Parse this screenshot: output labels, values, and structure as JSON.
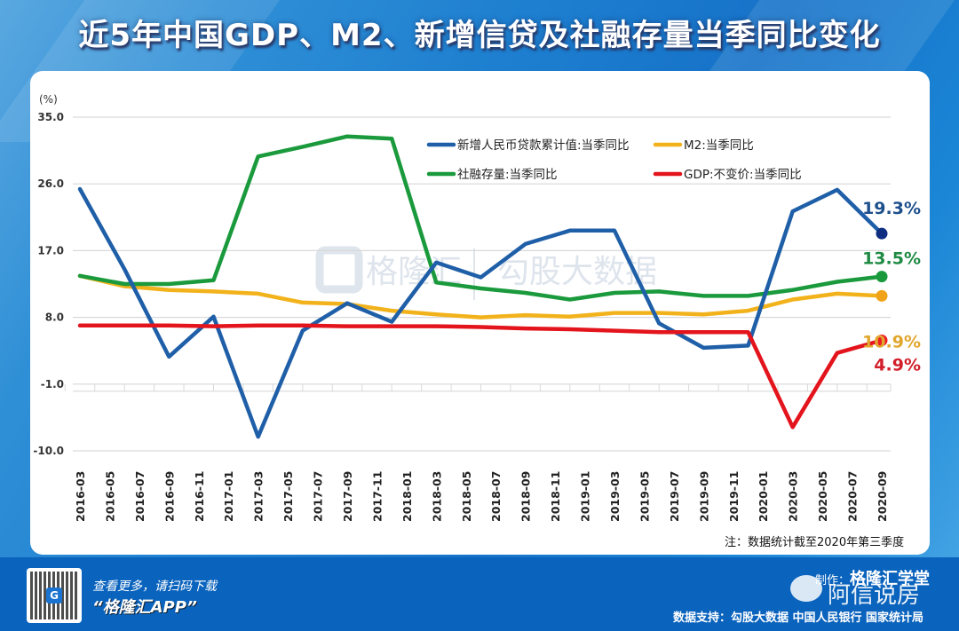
{
  "title": "近5年中国GDP、M2、新增信贷及社融存量当季同比变化",
  "note": "注：数据统计截至2020年第三季度",
  "footer": {
    "promo_line1": "查看更多，请扫码下载",
    "promo_line2": "“格隆汇APP”",
    "qr_logo": "G",
    "maker_prefix": "制作：",
    "maker": "格隆汇学堂",
    "wechat_watermark": "阿信说房",
    "sources": "数据支持：勾股大数据  中国人民银行  国家统计局"
  },
  "watermark": {
    "left": "格隆汇",
    "right": "勾股大数据"
  },
  "chart_data": {
    "type": "line",
    "title": "近5年中国GDP、M2、新增信贷及社融存量当季同比变化",
    "ylabel": "(%)",
    "xlabel": "",
    "ylim": [
      -10,
      35
    ],
    "yticks": [
      "35.0",
      "26.0",
      "17.0",
      "8.0",
      "-1.0",
      "-10.0"
    ],
    "ytick_values": [
      35,
      26,
      17,
      8,
      -1,
      -10
    ],
    "grid": true,
    "legend": "top-right",
    "x_tick_labels": [
      "2016-03",
      "2016-05",
      "2016-07",
      "2016-09",
      "2016-11",
      "2017-01",
      "2017-03",
      "2017-05",
      "2017-07",
      "2017-09",
      "2017-11",
      "2018-01",
      "2018-03",
      "2018-05",
      "2018-07",
      "2018-09",
      "2018-11",
      "2019-01",
      "2019-03",
      "2019-05",
      "2019-07",
      "2019-09",
      "2019-11",
      "2020-01",
      "2020-03",
      "2020-05",
      "2020-07",
      "2020-09"
    ],
    "x": [
      "2016Q1",
      "2016Q2",
      "2016Q3",
      "2016Q4",
      "2017Q1",
      "2017Q2",
      "2017Q3",
      "2017Q4",
      "2018Q1",
      "2018Q2",
      "2018Q3",
      "2018Q4",
      "2019Q1",
      "2019Q2",
      "2019Q3",
      "2019Q4",
      "2020Q1",
      "2020Q2",
      "2020Q3"
    ],
    "series": [
      {
        "name": "新增人民币贷款累计值:当季同比",
        "color": "#1f5fa8",
        "values": [
          25.3,
          14.5,
          2.7,
          8.1,
          -8.1,
          6.2,
          9.9,
          7.4,
          15.4,
          13.4,
          17.9,
          19.7,
          19.7,
          7.2,
          3.9,
          4.2,
          22.3,
          25.2,
          19.3
        ],
        "end_label": "19.3%",
        "end_label_color": "#1d4f8c",
        "end_marker_color": "#0f2e82"
      },
      {
        "name": "M2:当季同比",
        "color": "#f2b21b",
        "values": [
          13.6,
          12.2,
          11.7,
          11.5,
          11.2,
          10.0,
          9.8,
          8.9,
          8.4,
          8.0,
          8.3,
          8.1,
          8.6,
          8.6,
          8.4,
          8.9,
          10.4,
          11.2,
          10.9
        ],
        "end_label": "10.9%",
        "end_label_color": "#e1a62d",
        "end_marker_color": "#f0a318"
      },
      {
        "name": "社融存量:当季同比",
        "color": "#1a9a3c",
        "values": [
          13.6,
          12.5,
          12.5,
          13.0,
          29.7,
          31.0,
          32.4,
          32.1,
          12.7,
          11.9,
          11.3,
          10.4,
          11.3,
          11.5,
          10.9,
          10.9,
          11.7,
          12.8,
          13.5
        ],
        "end_label": "13.5%",
        "end_label_color": "#1e8a43",
        "end_marker_color": "#1a9a3c"
      },
      {
        "name": "GDP:不变价:当季同比",
        "color": "#e3141c",
        "values": [
          6.9,
          6.9,
          6.9,
          6.8,
          6.9,
          6.9,
          6.8,
          6.8,
          6.8,
          6.7,
          6.5,
          6.4,
          6.2,
          6.0,
          6.0,
          6.0,
          -6.8,
          3.2,
          4.9
        ],
        "end_label": "4.9%",
        "end_label_color": "#d21f2b",
        "end_marker_color": "#ee1c25"
      }
    ]
  }
}
